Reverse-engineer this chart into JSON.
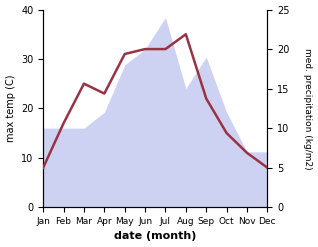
{
  "months": [
    "Jan",
    "Feb",
    "Mar",
    "Apr",
    "May",
    "Jun",
    "Jul",
    "Aug",
    "Sep",
    "Oct",
    "Nov",
    "Dec"
  ],
  "temperature": [
    8,
    17,
    25,
    23,
    31,
    32,
    32,
    35,
    22,
    15,
    11,
    8
  ],
  "precipitation": [
    10,
    10,
    10,
    12,
    18,
    20,
    24,
    15,
    19,
    12,
    7,
    7
  ],
  "temp_color": "#993344",
  "precip_fill_color": "#c5caf0",
  "precip_alpha": 0.85,
  "ylim_left": [
    0,
    40
  ],
  "ylim_right": [
    0,
    25
  ],
  "yticks_left": [
    0,
    10,
    20,
    30,
    40
  ],
  "yticks_right": [
    0,
    5,
    10,
    15,
    20,
    25
  ],
  "xlabel": "date (month)",
  "ylabel_left": "max temp (C)",
  "ylabel_right": "med. precipitation (kg/m2)",
  "bg_color": "#ffffff",
  "figsize": [
    3.18,
    2.47
  ],
  "dpi": 100
}
